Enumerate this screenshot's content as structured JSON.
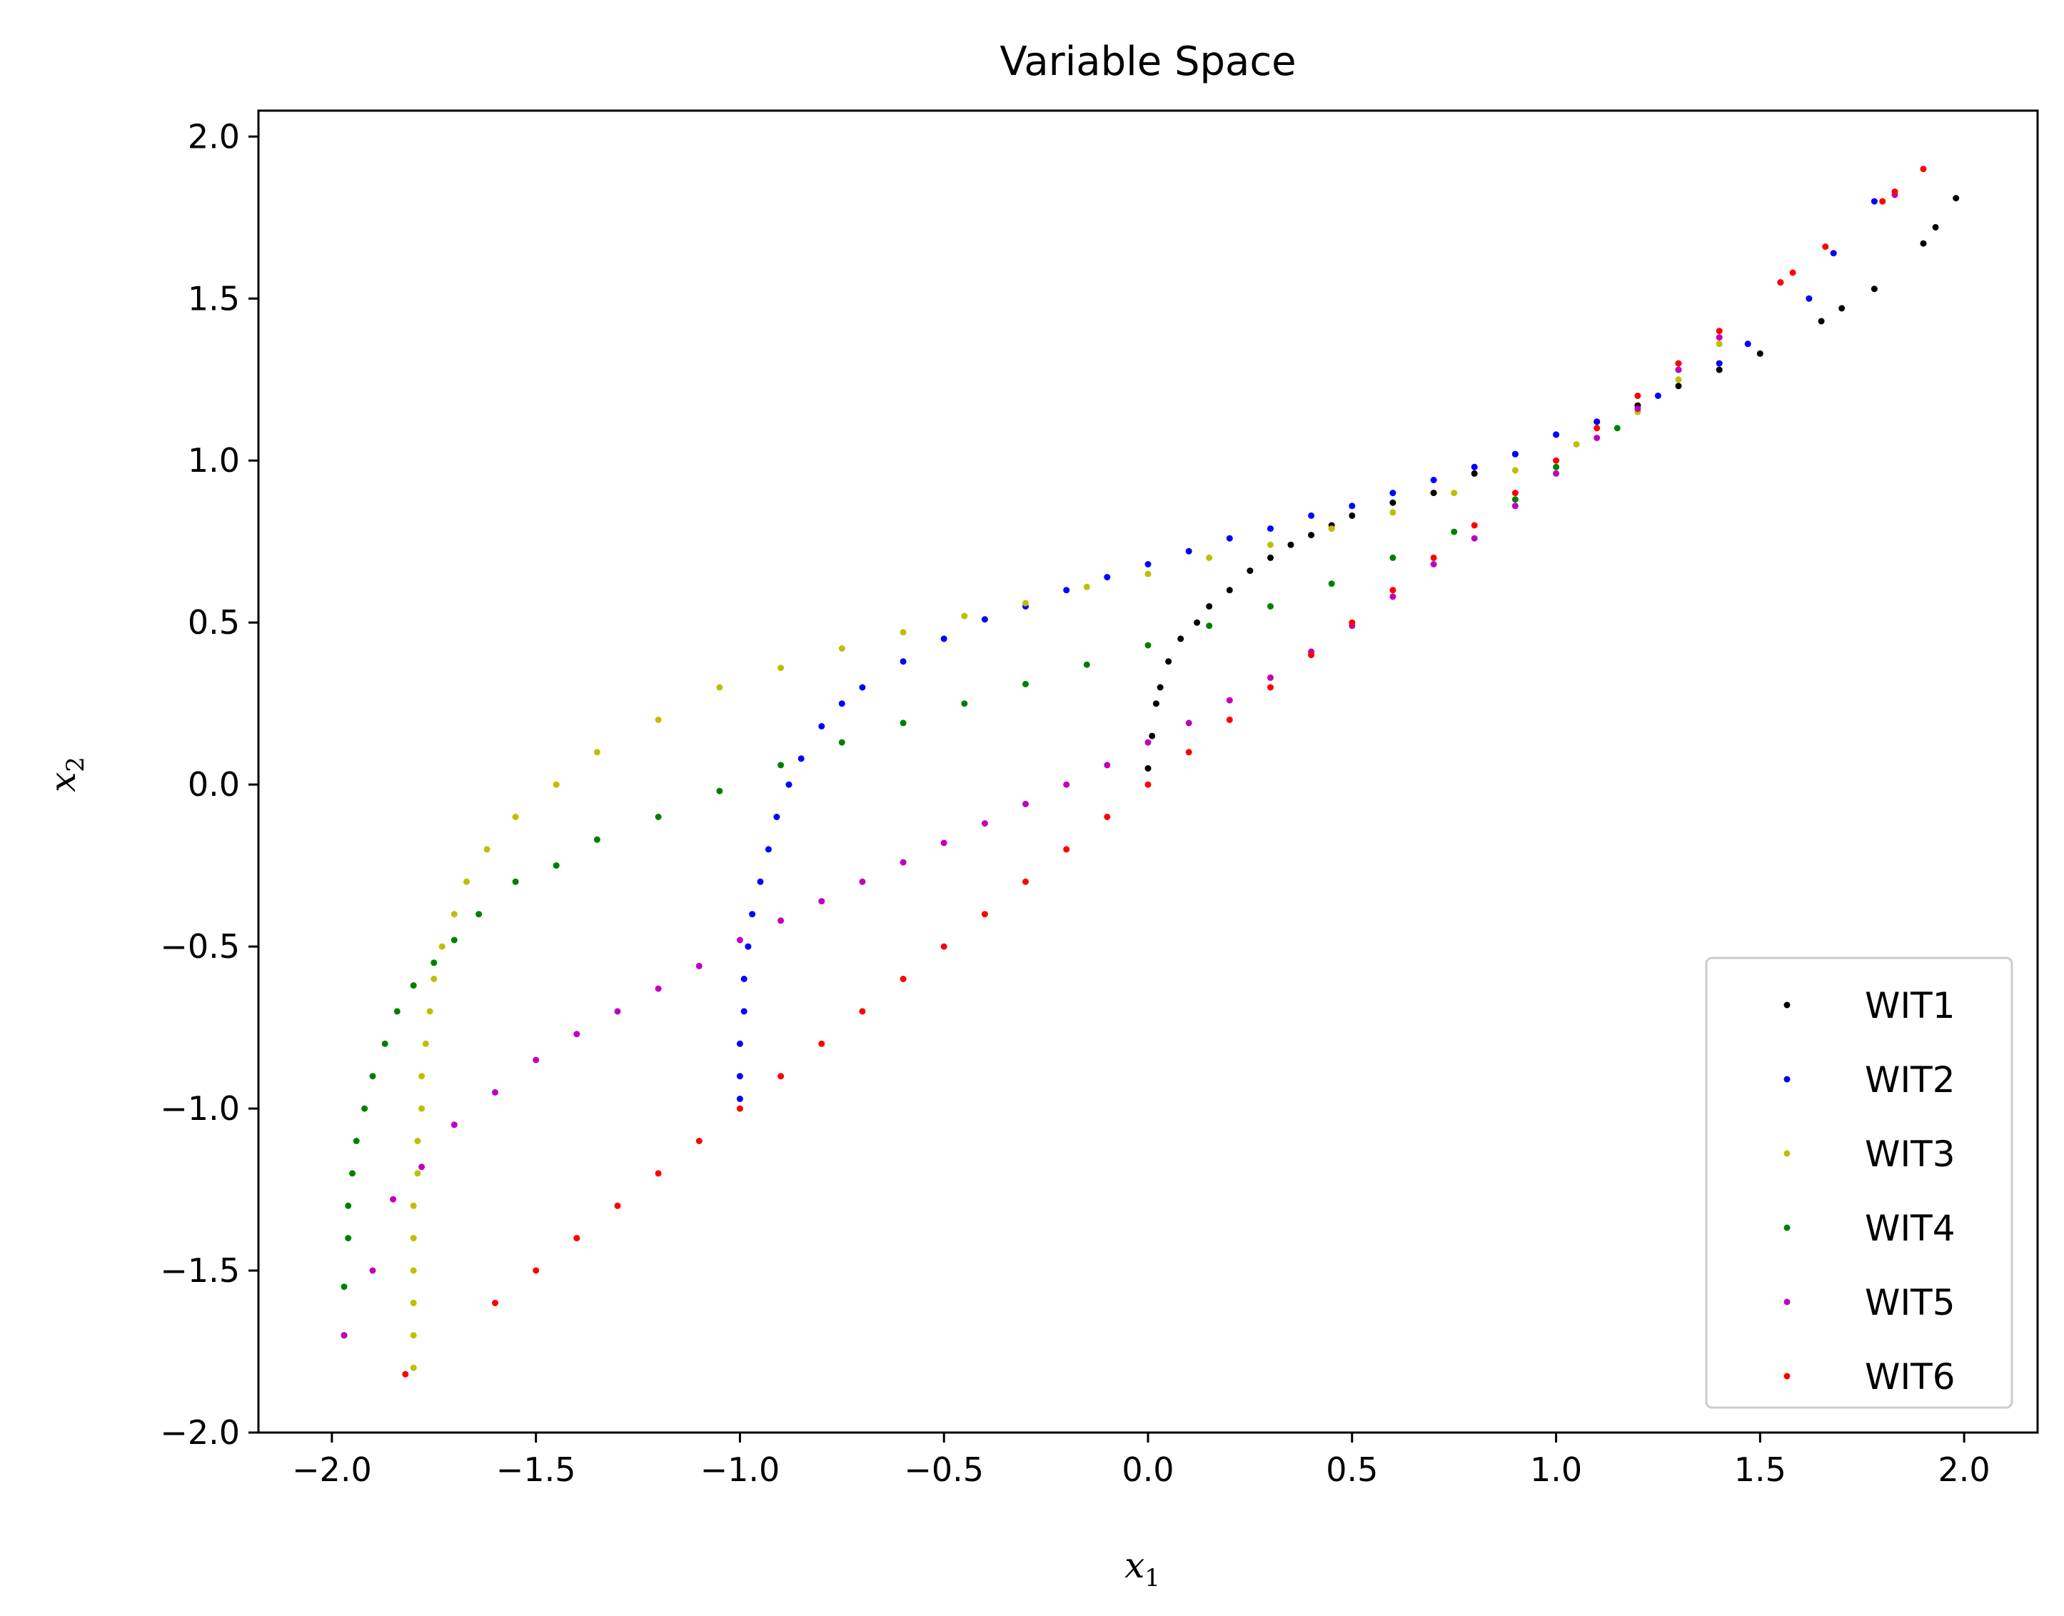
{
  "chart_data": {
    "type": "scatter",
    "title": "Variable Space",
    "xlabel": "x",
    "xlabel_sub": "1",
    "ylabel": "x",
    "ylabel_sub": "2",
    "xlim": [
      -2.18,
      2.18
    ],
    "ylim": [
      -2.0,
      2.08
    ],
    "xticks": [
      -2.0,
      -1.5,
      -1.0,
      -0.5,
      0.0,
      0.5,
      1.0,
      1.5,
      2.0
    ],
    "yticks": [
      -2.0,
      -1.5,
      -1.0,
      -0.5,
      0.0,
      0.5,
      1.0,
      1.5,
      2.0
    ],
    "xtick_labels": [
      "−2.0",
      "−1.5",
      "−1.0",
      "−0.5",
      "0.0",
      "0.5",
      "1.0",
      "1.5",
      "2.0"
    ],
    "ytick_labels": [
      "−2.0",
      "−1.5",
      "−1.0",
      "−0.5",
      "0.0",
      "0.5",
      "1.0",
      "1.5",
      "2.0"
    ],
    "grid": false,
    "legend_position": "lower-right",
    "series": [
      {
        "name": "WIT1",
        "color": "#000000",
        "points": [
          [
            0.0,
            0.05
          ],
          [
            0.01,
            0.15
          ],
          [
            0.02,
            0.25
          ],
          [
            0.03,
            0.3
          ],
          [
            0.05,
            0.38
          ],
          [
            0.08,
            0.45
          ],
          [
            0.12,
            0.5
          ],
          [
            0.15,
            0.55
          ],
          [
            0.2,
            0.6
          ],
          [
            0.25,
            0.66
          ],
          [
            0.3,
            0.7
          ],
          [
            0.35,
            0.74
          ],
          [
            0.4,
            0.77
          ],
          [
            0.45,
            0.8
          ],
          [
            0.5,
            0.83
          ],
          [
            0.6,
            0.87
          ],
          [
            0.7,
            0.9
          ],
          [
            0.8,
            0.96
          ],
          [
            0.9,
            1.02
          ],
          [
            1.0,
            1.08
          ],
          [
            1.1,
            1.12
          ],
          [
            1.2,
            1.17
          ],
          [
            1.3,
            1.23
          ],
          [
            1.4,
            1.28
          ],
          [
            1.5,
            1.33
          ],
          [
            1.65,
            1.43
          ],
          [
            1.7,
            1.47
          ],
          [
            1.78,
            1.53
          ],
          [
            1.9,
            1.67
          ],
          [
            1.93,
            1.72
          ],
          [
            1.98,
            1.81
          ]
        ]
      },
      {
        "name": "WIT2",
        "color": "#0000ff",
        "points": [
          [
            -1.0,
            -0.97
          ],
          [
            -1.0,
            -0.9
          ],
          [
            -1.0,
            -0.8
          ],
          [
            -0.99,
            -0.7
          ],
          [
            -0.99,
            -0.6
          ],
          [
            -0.98,
            -0.5
          ],
          [
            -0.97,
            -0.4
          ],
          [
            -0.95,
            -0.3
          ],
          [
            -0.93,
            -0.2
          ],
          [
            -0.91,
            -0.1
          ],
          [
            -0.88,
            0.0
          ],
          [
            -0.85,
            0.08
          ],
          [
            -0.8,
            0.18
          ],
          [
            -0.75,
            0.25
          ],
          [
            -0.7,
            0.3
          ],
          [
            -0.6,
            0.38
          ],
          [
            -0.5,
            0.45
          ],
          [
            -0.4,
            0.51
          ],
          [
            -0.3,
            0.55
          ],
          [
            -0.2,
            0.6
          ],
          [
            -0.1,
            0.64
          ],
          [
            0.0,
            0.68
          ],
          [
            0.1,
            0.72
          ],
          [
            0.2,
            0.76
          ],
          [
            0.3,
            0.79
          ],
          [
            0.4,
            0.83
          ],
          [
            0.5,
            0.86
          ],
          [
            0.6,
            0.9
          ],
          [
            0.7,
            0.94
          ],
          [
            0.8,
            0.98
          ],
          [
            0.9,
            1.02
          ],
          [
            1.0,
            1.08
          ],
          [
            1.1,
            1.12
          ],
          [
            1.25,
            1.2
          ],
          [
            1.4,
            1.3
          ],
          [
            1.47,
            1.36
          ],
          [
            1.62,
            1.5
          ],
          [
            1.68,
            1.64
          ],
          [
            1.78,
            1.8
          ]
        ]
      },
      {
        "name": "WIT3",
        "color": "#bfbf00",
        "points": [
          [
            -1.8,
            -1.8
          ],
          [
            -1.8,
            -1.7
          ],
          [
            -1.8,
            -1.6
          ],
          [
            -1.8,
            -1.5
          ],
          [
            -1.8,
            -1.4
          ],
          [
            -1.8,
            -1.3
          ],
          [
            -1.79,
            -1.2
          ],
          [
            -1.79,
            -1.1
          ],
          [
            -1.78,
            -1.0
          ],
          [
            -1.78,
            -0.9
          ],
          [
            -1.77,
            -0.8
          ],
          [
            -1.76,
            -0.7
          ],
          [
            -1.75,
            -0.6
          ],
          [
            -1.73,
            -0.5
          ],
          [
            -1.7,
            -0.4
          ],
          [
            -1.67,
            -0.3
          ],
          [
            -1.62,
            -0.2
          ],
          [
            -1.55,
            -0.1
          ],
          [
            -1.45,
            0.0
          ],
          [
            -1.35,
            0.1
          ],
          [
            -1.2,
            0.2
          ],
          [
            -1.05,
            0.3
          ],
          [
            -0.9,
            0.36
          ],
          [
            -0.75,
            0.42
          ],
          [
            -0.6,
            0.47
          ],
          [
            -0.45,
            0.52
          ],
          [
            -0.3,
            0.56
          ],
          [
            -0.15,
            0.61
          ],
          [
            0.0,
            0.65
          ],
          [
            0.15,
            0.7
          ],
          [
            0.3,
            0.74
          ],
          [
            0.45,
            0.79
          ],
          [
            0.6,
            0.84
          ],
          [
            0.75,
            0.9
          ],
          [
            0.9,
            0.97
          ],
          [
            1.05,
            1.05
          ],
          [
            1.2,
            1.15
          ],
          [
            1.3,
            1.25
          ],
          [
            1.4,
            1.36
          ]
        ]
      },
      {
        "name": "WIT4",
        "color": "#008000",
        "points": [
          [
            -1.97,
            -1.7
          ],
          [
            -1.97,
            -1.55
          ],
          [
            -1.96,
            -1.4
          ],
          [
            -1.96,
            -1.3
          ],
          [
            -1.95,
            -1.2
          ],
          [
            -1.94,
            -1.1
          ],
          [
            -1.92,
            -1.0
          ],
          [
            -1.9,
            -0.9
          ],
          [
            -1.87,
            -0.8
          ],
          [
            -1.84,
            -0.7
          ],
          [
            -1.8,
            -0.62
          ],
          [
            -1.75,
            -0.55
          ],
          [
            -1.7,
            -0.48
          ],
          [
            -1.64,
            -0.4
          ],
          [
            -1.55,
            -0.3
          ],
          [
            -1.45,
            -0.25
          ],
          [
            -1.35,
            -0.17
          ],
          [
            -1.2,
            -0.1
          ],
          [
            -1.05,
            -0.02
          ],
          [
            -0.9,
            0.06
          ],
          [
            -0.75,
            0.13
          ],
          [
            -0.6,
            0.19
          ],
          [
            -0.45,
            0.25
          ],
          [
            -0.3,
            0.31
          ],
          [
            -0.15,
            0.37
          ],
          [
            0.0,
            0.43
          ],
          [
            0.15,
            0.49
          ],
          [
            0.3,
            0.55
          ],
          [
            0.45,
            0.62
          ],
          [
            0.6,
            0.7
          ],
          [
            0.75,
            0.78
          ],
          [
            0.9,
            0.88
          ],
          [
            1.0,
            0.98
          ],
          [
            1.15,
            1.1
          ],
          [
            1.3,
            1.28
          ]
        ]
      },
      {
        "name": "WIT5",
        "color": "#bf00bf",
        "points": [
          [
            -1.97,
            -1.7
          ],
          [
            -1.9,
            -1.5
          ],
          [
            -1.85,
            -1.28
          ],
          [
            -1.78,
            -1.18
          ],
          [
            -1.7,
            -1.05
          ],
          [
            -1.6,
            -0.95
          ],
          [
            -1.5,
            -0.85
          ],
          [
            -1.4,
            -0.77
          ],
          [
            -1.3,
            -0.7
          ],
          [
            -1.2,
            -0.63
          ],
          [
            -1.1,
            -0.56
          ],
          [
            -1.0,
            -0.48
          ],
          [
            -0.9,
            -0.42
          ],
          [
            -0.8,
            -0.36
          ],
          [
            -0.7,
            -0.3
          ],
          [
            -0.6,
            -0.24
          ],
          [
            -0.5,
            -0.18
          ],
          [
            -0.4,
            -0.12
          ],
          [
            -0.3,
            -0.06
          ],
          [
            -0.2,
            0.0
          ],
          [
            -0.1,
            0.06
          ],
          [
            0.0,
            0.13
          ],
          [
            0.1,
            0.19
          ],
          [
            0.2,
            0.26
          ],
          [
            0.3,
            0.33
          ],
          [
            0.4,
            0.41
          ],
          [
            0.5,
            0.49
          ],
          [
            0.6,
            0.58
          ],
          [
            0.7,
            0.68
          ],
          [
            0.8,
            0.76
          ],
          [
            0.9,
            0.86
          ],
          [
            1.0,
            0.96
          ],
          [
            1.1,
            1.07
          ],
          [
            1.2,
            1.16
          ],
          [
            1.3,
            1.28
          ],
          [
            1.4,
            1.38
          ],
          [
            1.55,
            1.55
          ],
          [
            1.83,
            1.82
          ]
        ]
      },
      {
        "name": "WIT6",
        "color": "#ff0000",
        "points": [
          [
            -1.82,
            -1.82
          ],
          [
            -1.6,
            -1.6
          ],
          [
            -1.5,
            -1.5
          ],
          [
            -1.4,
            -1.4
          ],
          [
            -1.3,
            -1.3
          ],
          [
            -1.2,
            -1.2
          ],
          [
            -1.1,
            -1.1
          ],
          [
            -1.0,
            -1.0
          ],
          [
            -0.9,
            -0.9
          ],
          [
            -0.8,
            -0.8
          ],
          [
            -0.7,
            -0.7
          ],
          [
            -0.6,
            -0.6
          ],
          [
            -0.5,
            -0.5
          ],
          [
            -0.4,
            -0.4
          ],
          [
            -0.3,
            -0.3
          ],
          [
            -0.2,
            -0.2
          ],
          [
            -0.1,
            -0.1
          ],
          [
            0.0,
            0.0
          ],
          [
            0.1,
            0.1
          ],
          [
            0.2,
            0.2
          ],
          [
            0.3,
            0.3
          ],
          [
            0.4,
            0.4
          ],
          [
            0.5,
            0.5
          ],
          [
            0.6,
            0.6
          ],
          [
            0.7,
            0.7
          ],
          [
            0.8,
            0.8
          ],
          [
            0.9,
            0.9
          ],
          [
            1.0,
            1.0
          ],
          [
            1.1,
            1.1
          ],
          [
            1.2,
            1.2
          ],
          [
            1.3,
            1.3
          ],
          [
            1.4,
            1.4
          ],
          [
            1.55,
            1.55
          ],
          [
            1.58,
            1.58
          ],
          [
            1.66,
            1.66
          ],
          [
            1.8,
            1.8
          ],
          [
            1.83,
            1.83
          ],
          [
            1.9,
            1.9
          ]
        ]
      }
    ]
  }
}
